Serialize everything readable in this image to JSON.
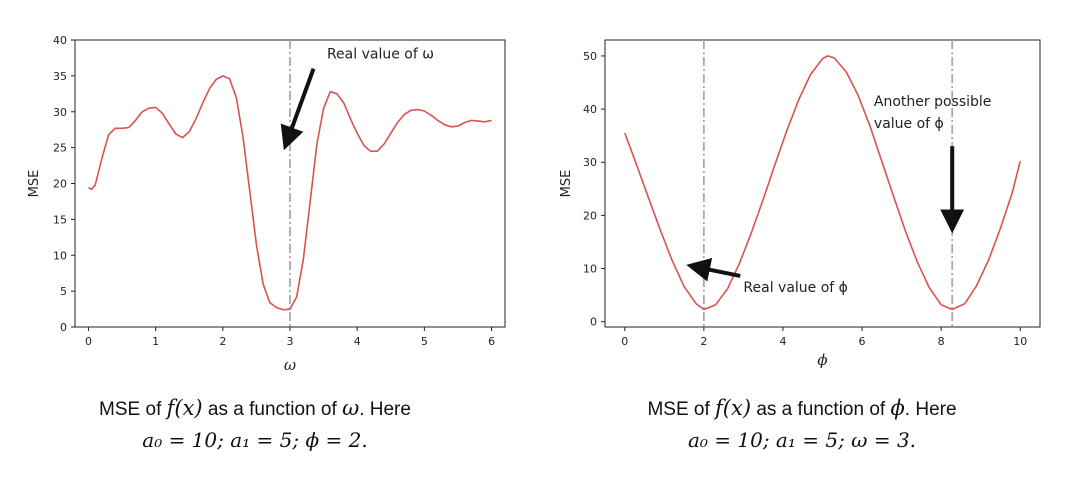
{
  "chart_data": [
    {
      "type": "line",
      "xlabel": "ω",
      "ylabel": "MSE",
      "xlim": [
        -0.2,
        6.2
      ],
      "ylim": [
        0,
        40
      ],
      "xticks": [
        "0",
        "1",
        "2",
        "3",
        "4",
        "5",
        "6"
      ],
      "yticks": [
        "0",
        "5",
        "10",
        "15",
        "20",
        "25",
        "30",
        "35",
        "40"
      ],
      "line_color": "#d9534f",
      "vline_x": 3,
      "vline_color": "#a8a8b8",
      "series": [
        {
          "x": [
            0,
            0.05,
            0.1,
            0.2,
            0.3,
            0.4,
            0.5,
            0.6,
            0.7,
            0.8,
            0.9,
            1.0,
            1.1,
            1.2,
            1.3,
            1.4,
            1.5,
            1.6,
            1.7,
            1.8,
            1.9,
            2.0,
            2.1,
            2.2,
            2.3,
            2.4,
            2.5,
            2.6,
            2.7,
            2.8,
            2.9,
            3.0,
            3.1,
            3.2,
            3.3,
            3.4,
            3.5,
            3.6,
            3.7,
            3.8,
            3.9,
            4.0,
            4.1,
            4.2,
            4.3,
            4.4,
            4.5,
            4.6,
            4.7,
            4.8,
            4.9,
            5.0,
            5.1,
            5.2,
            5.3,
            5.4,
            5.5,
            5.6,
            5.7,
            5.8,
            5.9,
            6.0
          ],
          "y": [
            19.4,
            19.2,
            19.8,
            23.5,
            26.8,
            27.7,
            27.7,
            27.8,
            28.8,
            30.0,
            30.5,
            30.6,
            29.8,
            28.3,
            26.9,
            26.4,
            27.2,
            29.0,
            31.2,
            33.2,
            34.5,
            35.0,
            34.6,
            32.0,
            26.5,
            19.0,
            11.5,
            6.0,
            3.4,
            2.7,
            2.4,
            2.5,
            4.2,
            9.5,
            17.5,
            25.5,
            30.5,
            32.8,
            32.5,
            31.2,
            29.0,
            27.0,
            25.3,
            24.5,
            24.5,
            25.5,
            27.0,
            28.5,
            29.6,
            30.2,
            30.3,
            30.1,
            29.5,
            28.8,
            28.2,
            27.9,
            28.0,
            28.5,
            28.8,
            28.7,
            28.6,
            28.8
          ]
        }
      ],
      "annotation": {
        "text": "Real value of ω",
        "text_x": 3.55,
        "text_y": 37.4,
        "arrow_from_x": 3.35,
        "arrow_from_y": 36.0,
        "arrow_to_x": 3.0,
        "arrow_to_y": 27.0
      }
    },
    {
      "type": "line",
      "xlabel": "ϕ",
      "ylabel": "MSE",
      "xlim": [
        -0.5,
        10.5
      ],
      "ylim": [
        -1,
        53
      ],
      "xticks": [
        "0",
        "2",
        "4",
        "6",
        "8",
        "10"
      ],
      "yticks": [
        "0",
        "10",
        "20",
        "30",
        "40",
        "50"
      ],
      "line_color": "#d9534f",
      "vline_color": "#a8a8b8",
      "vlines_x": [
        2.0,
        8.28
      ],
      "series": [
        {
          "x": [
            0,
            0.3,
            0.6,
            0.9,
            1.2,
            1.5,
            1.8,
            2.0,
            2.3,
            2.6,
            2.9,
            3.2,
            3.5,
            3.8,
            4.1,
            4.4,
            4.7,
            5.0,
            5.14,
            5.3,
            5.6,
            5.9,
            6.2,
            6.5,
            6.8,
            7.1,
            7.4,
            7.7,
            8.0,
            8.28,
            8.6,
            8.9,
            9.2,
            9.5,
            9.8,
            10.0
          ],
          "y": [
            35.5,
            29.5,
            23.3,
            17.2,
            11.5,
            6.6,
            3.4,
            2.3,
            3.2,
            6.2,
            11.0,
            16.7,
            23.0,
            29.6,
            36.0,
            41.8,
            46.5,
            49.5,
            50.0,
            49.6,
            47.0,
            42.6,
            36.8,
            30.2,
            23.5,
            17.0,
            11.2,
            6.4,
            3.2,
            2.3,
            3.4,
            6.8,
            11.6,
            17.6,
            24.3,
            30.2
          ]
        }
      ],
      "annotations": [
        {
          "text": "Real value of ϕ",
          "text_x": 3.0,
          "text_y": 5.6,
          "arrow_from_x": 2.92,
          "arrow_from_y": 8.6,
          "arrow_to_x": 2.0,
          "arrow_to_y": 10.0
        },
        {
          "text_lines": [
            "Another possible",
            "value of ϕ"
          ],
          "text_x": 6.3,
          "text_y": 40.6,
          "arrow_from_x": 8.28,
          "arrow_from_y": 33.0,
          "arrow_to_x": 8.28,
          "arrow_to_y": 20.0
        }
      ]
    }
  ],
  "captions": [
    {
      "prefix": "MSE of ",
      "math1": "f(x)",
      "mid": " as a function of ",
      "math2": "ω",
      "suffix": ". Here",
      "line2": "a₀ = 10; a₁ = 5; ϕ = 2."
    },
    {
      "prefix": "MSE of ",
      "math1": "f(x)",
      "mid": " as a function of ",
      "math2": "ϕ",
      "suffix": ". Here",
      "line2": "a₀ = 10; a₁ = 5; ω = 3."
    }
  ]
}
